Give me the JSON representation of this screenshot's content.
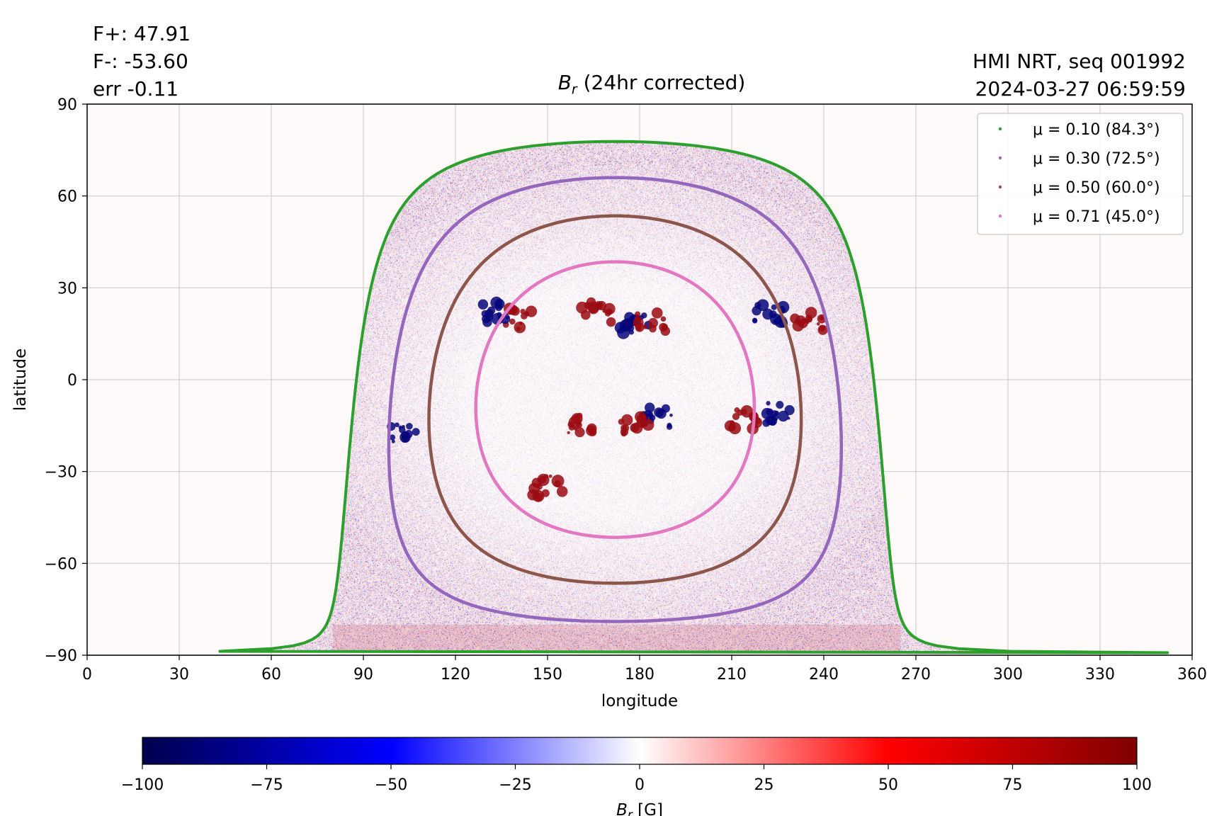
{
  "header": {
    "flux_positive": "F+: 47.91",
    "flux_negative": "F-: -53.60",
    "error": "err -0.11",
    "instrument": "HMI NRT, seq 001992",
    "timestamp": "2024-03-27 06:59:59"
  },
  "chart_data": {
    "type": "heatmap",
    "title_symbol": "B",
    "title_subscript": "r",
    "title_rest": " (24hr corrected)",
    "xlabel": "longitude",
    "ylabel": "latitude",
    "xlim": [
      0,
      360
    ],
    "ylim": [
      -90,
      90
    ],
    "x_ticks": [
      0,
      30,
      60,
      90,
      120,
      150,
      180,
      210,
      240,
      270,
      300,
      330,
      360
    ],
    "x_tick_labels": [
      "0",
      "30",
      "60",
      "90",
      "120",
      "150",
      "180",
      "210",
      "240",
      "270",
      "300",
      "330",
      "360"
    ],
    "y_ticks": [
      90,
      60,
      30,
      0,
      -30,
      -60,
      -90
    ],
    "y_tick_labels": [
      "90",
      "60",
      "30",
      "0",
      "−30",
      "−60",
      "−90"
    ],
    "grid": true,
    "legend_position": "top-right",
    "disk_center": {
      "lon": 172,
      "lat": -6.5
    },
    "contours": [
      {
        "label": "μ = 0.10 (84.3°)",
        "mu": 0.1,
        "angle_deg": 84.3,
        "color": "#2ca02c",
        "lat_top": 77,
        "lat_bottom": -90
      },
      {
        "label": "μ = 0.30 (72.5°)",
        "mu": 0.3,
        "angle_deg": 72.5,
        "color": "#9467bd",
        "lat_top": 65,
        "lat_bottom": -79
      },
      {
        "label": "μ = 0.50 (60.0°)",
        "mu": 0.5,
        "angle_deg": 60.0,
        "color": "#8c564b",
        "lat_top": 53,
        "lat_bottom": -67
      },
      {
        "label": "μ = 0.71 (45.0°)",
        "mu": 0.71,
        "angle_deg": 45.0,
        "color": "#e377c2",
        "lat_top": 38,
        "lat_bottom": -51
      }
    ],
    "active_regions": [
      {
        "lon": 214,
        "lat": -13,
        "polarity": "positive"
      },
      {
        "lon": 224,
        "lat": -11,
        "polarity": "negative"
      },
      {
        "lon": 222,
        "lat": 21,
        "polarity": "negative"
      },
      {
        "lon": 235,
        "lat": 19,
        "polarity": "positive"
      },
      {
        "lon": 140,
        "lat": 20,
        "polarity": "positive"
      },
      {
        "lon": 133,
        "lat": 22,
        "polarity": "negative"
      },
      {
        "lon": 166,
        "lat": 22,
        "polarity": "positive"
      },
      {
        "lon": 178,
        "lat": 18,
        "polarity": "negative"
      },
      {
        "lon": 184,
        "lat": 19,
        "polarity": "positive"
      },
      {
        "lon": 186,
        "lat": -12,
        "polarity": "negative"
      },
      {
        "lon": 178,
        "lat": -15,
        "polarity": "positive"
      },
      {
        "lon": 160,
        "lat": -15,
        "polarity": "positive"
      },
      {
        "lon": 150,
        "lat": -35,
        "polarity": "positive"
      },
      {
        "lon": 103,
        "lat": -18,
        "polarity": "negative"
      }
    ],
    "colorbar": {
      "min": -100,
      "max": 100,
      "ticks": [
        -100,
        -75,
        -50,
        -25,
        0,
        25,
        50,
        75,
        100
      ],
      "tick_labels": [
        "−100",
        "−75",
        "−50",
        "−25",
        "0",
        "25",
        "50",
        "75",
        "100"
      ],
      "label_symbol": "B",
      "label_subscript": "r",
      "label_rest": " [G]",
      "colormap": "seismic"
    }
  }
}
